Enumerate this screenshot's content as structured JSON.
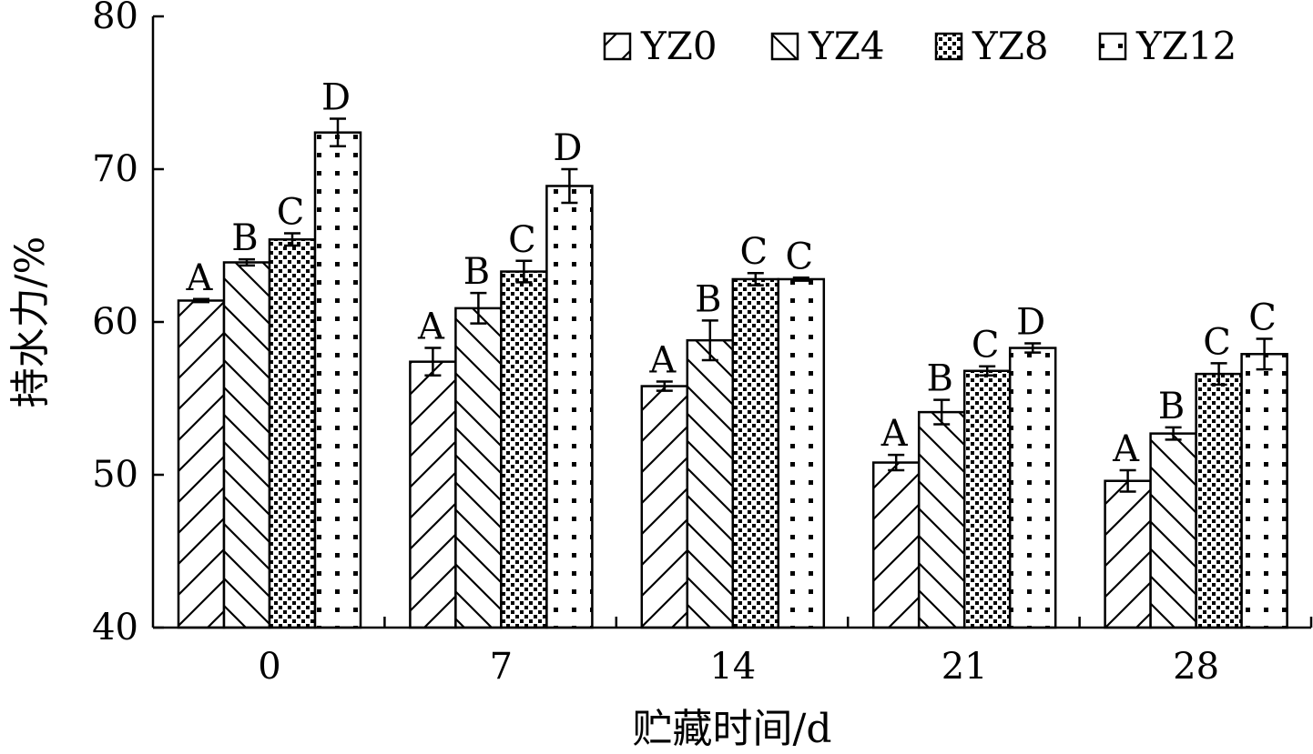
{
  "chart_data": {
    "type": "bar",
    "title": "",
    "xlabel": "贮藏时间/d",
    "ylabel": "持水力/%",
    "ylim": [
      40,
      80
    ],
    "yticks": [
      40,
      50,
      60,
      70,
      80
    ],
    "categories": [
      "0",
      "7",
      "14",
      "21",
      "28"
    ],
    "legend_position": "top-right",
    "grid": false,
    "series": [
      {
        "name": "YZ0",
        "pattern": "diagonal-forward",
        "values": [
          61.4,
          57.4,
          55.8,
          50.8,
          49.6
        ],
        "errors": [
          0.1,
          0.9,
          0.3,
          0.5,
          0.7
        ],
        "labels": [
          "A",
          "A",
          "A",
          "A",
          "A"
        ]
      },
      {
        "name": "YZ4",
        "pattern": "diagonal-backward",
        "values": [
          63.9,
          60.9,
          58.8,
          54.1,
          52.7
        ],
        "errors": [
          0.2,
          1.0,
          1.3,
          0.8,
          0.4
        ],
        "labels": [
          "B",
          "B",
          "B",
          "B",
          "B"
        ]
      },
      {
        "name": "YZ8",
        "pattern": "dense-dots",
        "values": [
          65.4,
          63.3,
          62.8,
          56.8,
          56.6
        ],
        "errors": [
          0.4,
          0.7,
          0.4,
          0.3,
          0.7
        ],
        "labels": [
          "C",
          "C",
          "C",
          "C",
          "C"
        ]
      },
      {
        "name": "YZ12",
        "pattern": "sparse-dots",
        "values": [
          72.4,
          68.9,
          62.8,
          58.3,
          57.9
        ],
        "errors": [
          0.9,
          1.1,
          0.1,
          0.3,
          1.0
        ],
        "labels": [
          "D",
          "D",
          "C",
          "D",
          "C"
        ]
      }
    ]
  }
}
